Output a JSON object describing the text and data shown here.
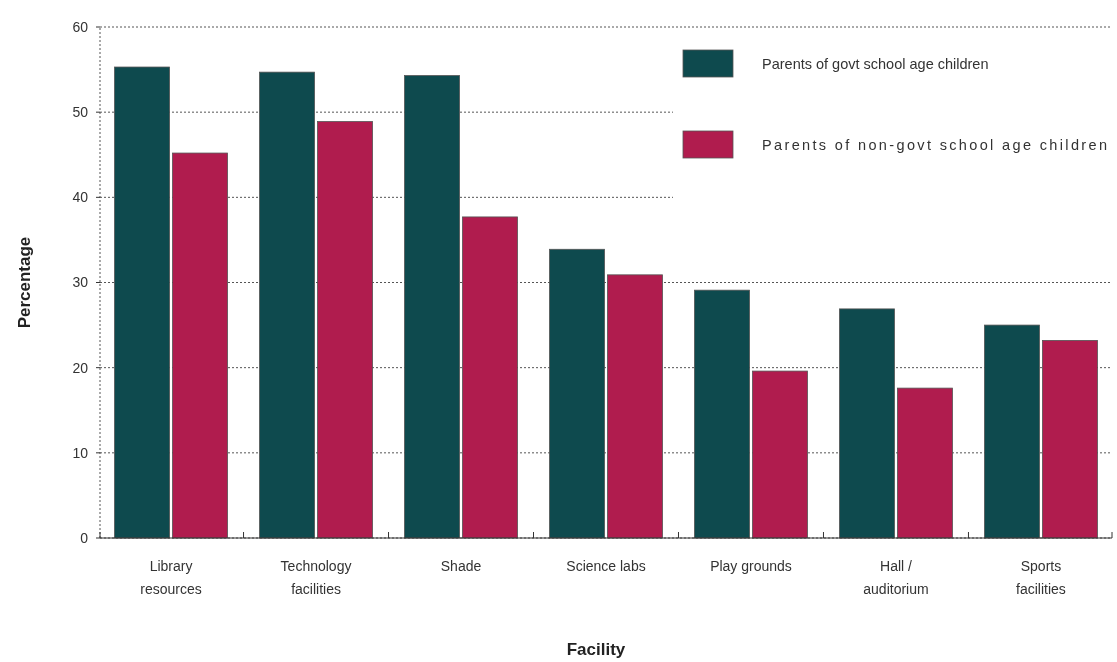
{
  "chart_data": {
    "type": "bar",
    "xlabel": "Facility",
    "ylabel": "Percentage",
    "categories": [
      "Library\nresources",
      "Technology\nfacilities",
      "Shade",
      "Science labs",
      "Play grounds",
      "Hall /\nauditorium",
      "Sports\nfacilities"
    ],
    "series": [
      {
        "name": "Parents of govt school age children",
        "color": "#0e4a4e",
        "values": [
          55.3,
          54.7,
          54.3,
          33.9,
          29.1,
          26.9,
          25.0
        ]
      },
      {
        "name": "Parents of non-govt school age children",
        "color": "#b01c4e",
        "values": [
          45.2,
          48.9,
          37.7,
          30.9,
          19.6,
          17.6,
          23.2
        ]
      }
    ],
    "ylim": [
      0,
      60
    ],
    "yticks": [
      0,
      10,
      20,
      30,
      40,
      50,
      60
    ],
    "grid": "y",
    "legend": "top right"
  }
}
